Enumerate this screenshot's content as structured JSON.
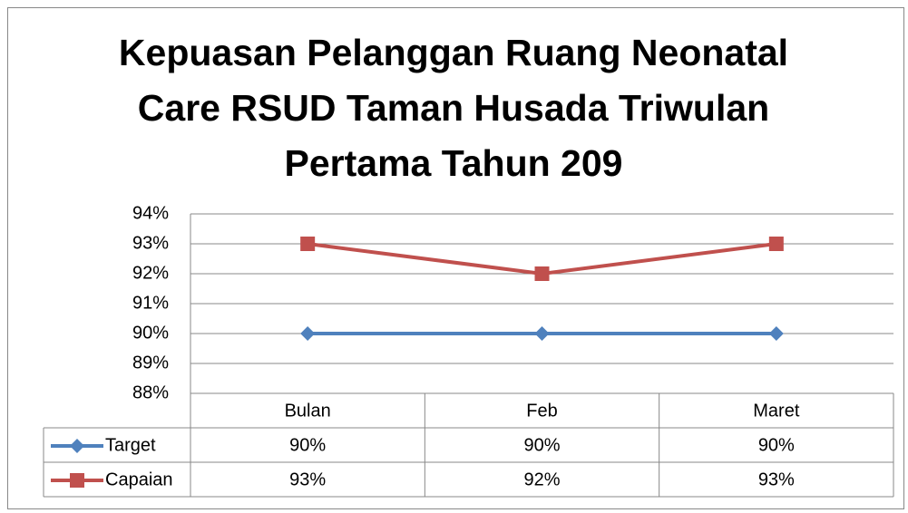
{
  "chart_data": {
    "type": "line",
    "title": "Kepuasan Pelanggan Ruang Neonatal Care RSUD Taman Husada Triwulan Pertama Tahun 209",
    "categories": [
      "Bulan",
      "Feb",
      "Maret"
    ],
    "series": [
      {
        "name": "Target",
        "color": "#4f81bd",
        "marker": "diamond",
        "values": [
          90,
          90,
          90
        ],
        "value_labels": [
          "90%",
          "90%",
          "90%"
        ]
      },
      {
        "name": "Capaian",
        "color": "#c0504d",
        "marker": "square",
        "values": [
          93,
          92,
          93
        ],
        "value_labels": [
          "93%",
          "92%",
          "93%"
        ]
      }
    ],
    "ylim": [
      88,
      94
    ],
    "yticks": [
      {
        "value": 88,
        "label": "88%"
      },
      {
        "value": 89,
        "label": "89%"
      },
      {
        "value": 90,
        "label": "90%"
      },
      {
        "value": 91,
        "label": "91%"
      },
      {
        "value": 92,
        "label": "92%"
      },
      {
        "value": 93,
        "label": "93%"
      },
      {
        "value": 94,
        "label": "94%"
      }
    ],
    "grid": true
  }
}
